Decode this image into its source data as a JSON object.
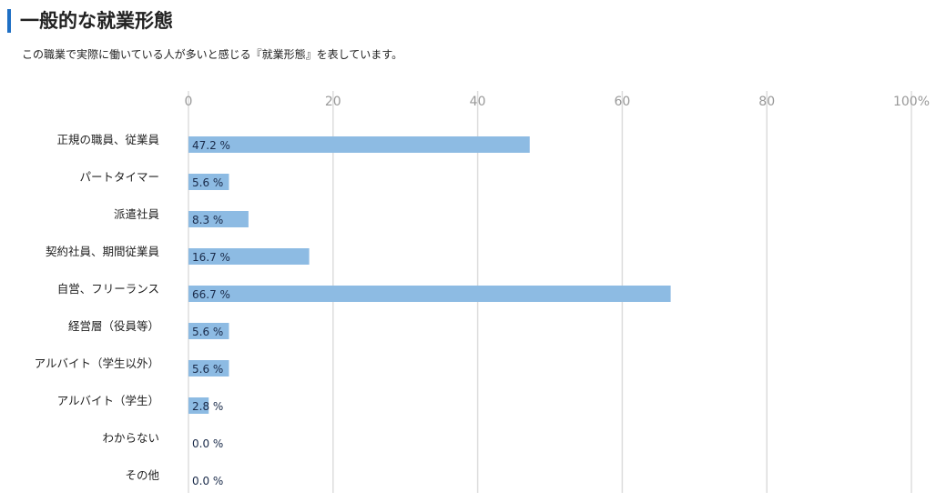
{
  "header": {
    "title": "一般的な就業形態",
    "subtitle": "この職業で実際に働いている人が多いと感じる『就業形態』を表しています。"
  },
  "chart_data": {
    "type": "bar",
    "orientation": "horizontal",
    "categories": [
      "正規の職員、従業員",
      "パートタイマー",
      "派遣社員",
      "契約社員、期間従業員",
      "自営、フリーランス",
      "経営層（役員等）",
      "アルバイト（学生以外）",
      "アルバイト（学生）",
      "わからない",
      "その他"
    ],
    "values": [
      47.2,
      5.6,
      8.3,
      16.7,
      66.7,
      5.6,
      5.6,
      2.8,
      0.0,
      0.0
    ],
    "value_labels": [
      "47.2 %",
      "5.6 %",
      "8.3 %",
      "16.7 %",
      "66.7 %",
      "5.6 %",
      "5.6 %",
      "2.8 %",
      "0.0 %",
      "0.0 %"
    ],
    "xlim": [
      0,
      100
    ],
    "ticks": [
      0,
      20,
      40,
      60,
      80,
      100
    ],
    "tick_labels": [
      "0",
      "20",
      "40",
      "60",
      "80",
      "100%"
    ],
    "grid": true,
    "bar_color": "#8dbbe3",
    "grid_color": "#dddddd"
  }
}
